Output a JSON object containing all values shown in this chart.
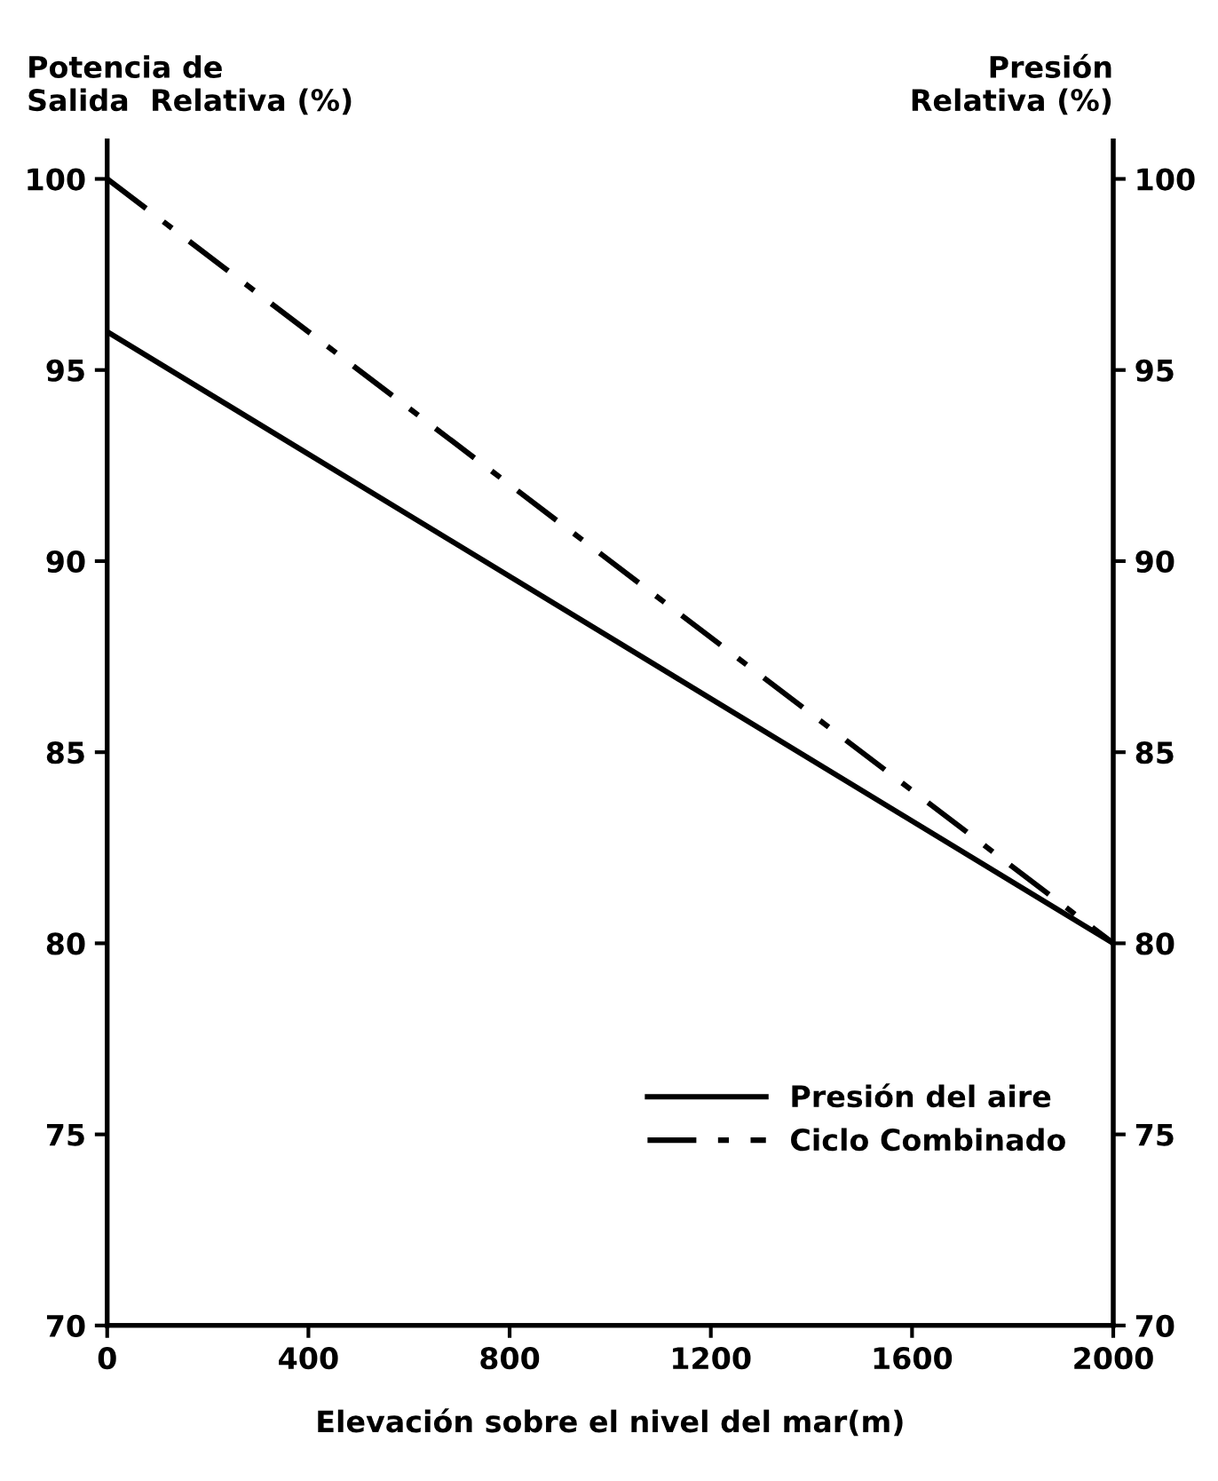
{
  "chart_data": {
    "type": "line",
    "xlabel": "Elevación sobre el nivel del mar(m)",
    "ylabel": "Potencia de\nSalida  Relativa (%)",
    "y2label": "Presión\nRelativa (%)",
    "x": [
      0,
      2000
    ],
    "series": [
      {
        "name": "Presión del aire",
        "color": "#000000",
        "values": [
          96,
          80
        ],
        "line_style": "solid"
      },
      {
        "name": "Ciclo Combinado",
        "color": "#000000",
        "values": [
          100,
          80
        ],
        "line_style": "dashdot"
      }
    ],
    "xlim": [
      0,
      2000
    ],
    "xticks": [
      0,
      400,
      800,
      1200,
      1600,
      2000
    ],
    "ylim": [
      70,
      101
    ],
    "yticks": [
      70,
      75,
      80,
      85,
      90,
      95,
      100
    ],
    "y2lim": [
      70,
      101
    ],
    "y2ticks": [
      70,
      75,
      80,
      85,
      90,
      95,
      100
    ],
    "grid": false,
    "legend": "bottom right",
    "marker": "none"
  }
}
